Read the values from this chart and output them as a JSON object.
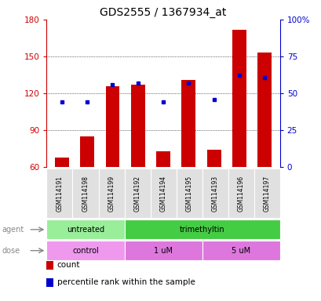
{
  "title": "GDS2555 / 1367934_at",
  "samples": [
    "GSM114191",
    "GSM114198",
    "GSM114199",
    "GSM114192",
    "GSM114194",
    "GSM114195",
    "GSM114193",
    "GSM114196",
    "GSM114197"
  ],
  "count_values": [
    68,
    85,
    126,
    127,
    73,
    131,
    74,
    172,
    153
  ],
  "percentile_values": [
    113,
    113,
    127,
    128,
    113,
    128,
    115,
    135,
    133
  ],
  "y_min": 60,
  "y_max": 180,
  "y_ticks": [
    60,
    90,
    120,
    150,
    180
  ],
  "y2_ticks": [
    0,
    25,
    50,
    75,
    100
  ],
  "y2_tick_positions": [
    60,
    90,
    120,
    150,
    180
  ],
  "agent_groups": [
    {
      "label": "untreated",
      "start": 0,
      "end": 3,
      "color": "#99ee99"
    },
    {
      "label": "trimethyltin",
      "start": 3,
      "end": 9,
      "color": "#44cc44"
    }
  ],
  "dose_groups": [
    {
      "label": "control",
      "start": 0,
      "end": 3,
      "color": "#ee99ee"
    },
    {
      "label": "1 uM",
      "start": 3,
      "end": 6,
      "color": "#dd77dd"
    },
    {
      "label": "5 uM",
      "start": 6,
      "end": 9,
      "color": "#dd77dd"
    }
  ],
  "bar_color": "#cc0000",
  "dot_color": "#0000cc",
  "background_color": "#ffffff",
  "title_fontsize": 10,
  "tick_fontsize": 7.5,
  "legend": [
    {
      "label": "count",
      "color": "#cc0000"
    },
    {
      "label": "percentile rank within the sample",
      "color": "#0000cc"
    }
  ]
}
